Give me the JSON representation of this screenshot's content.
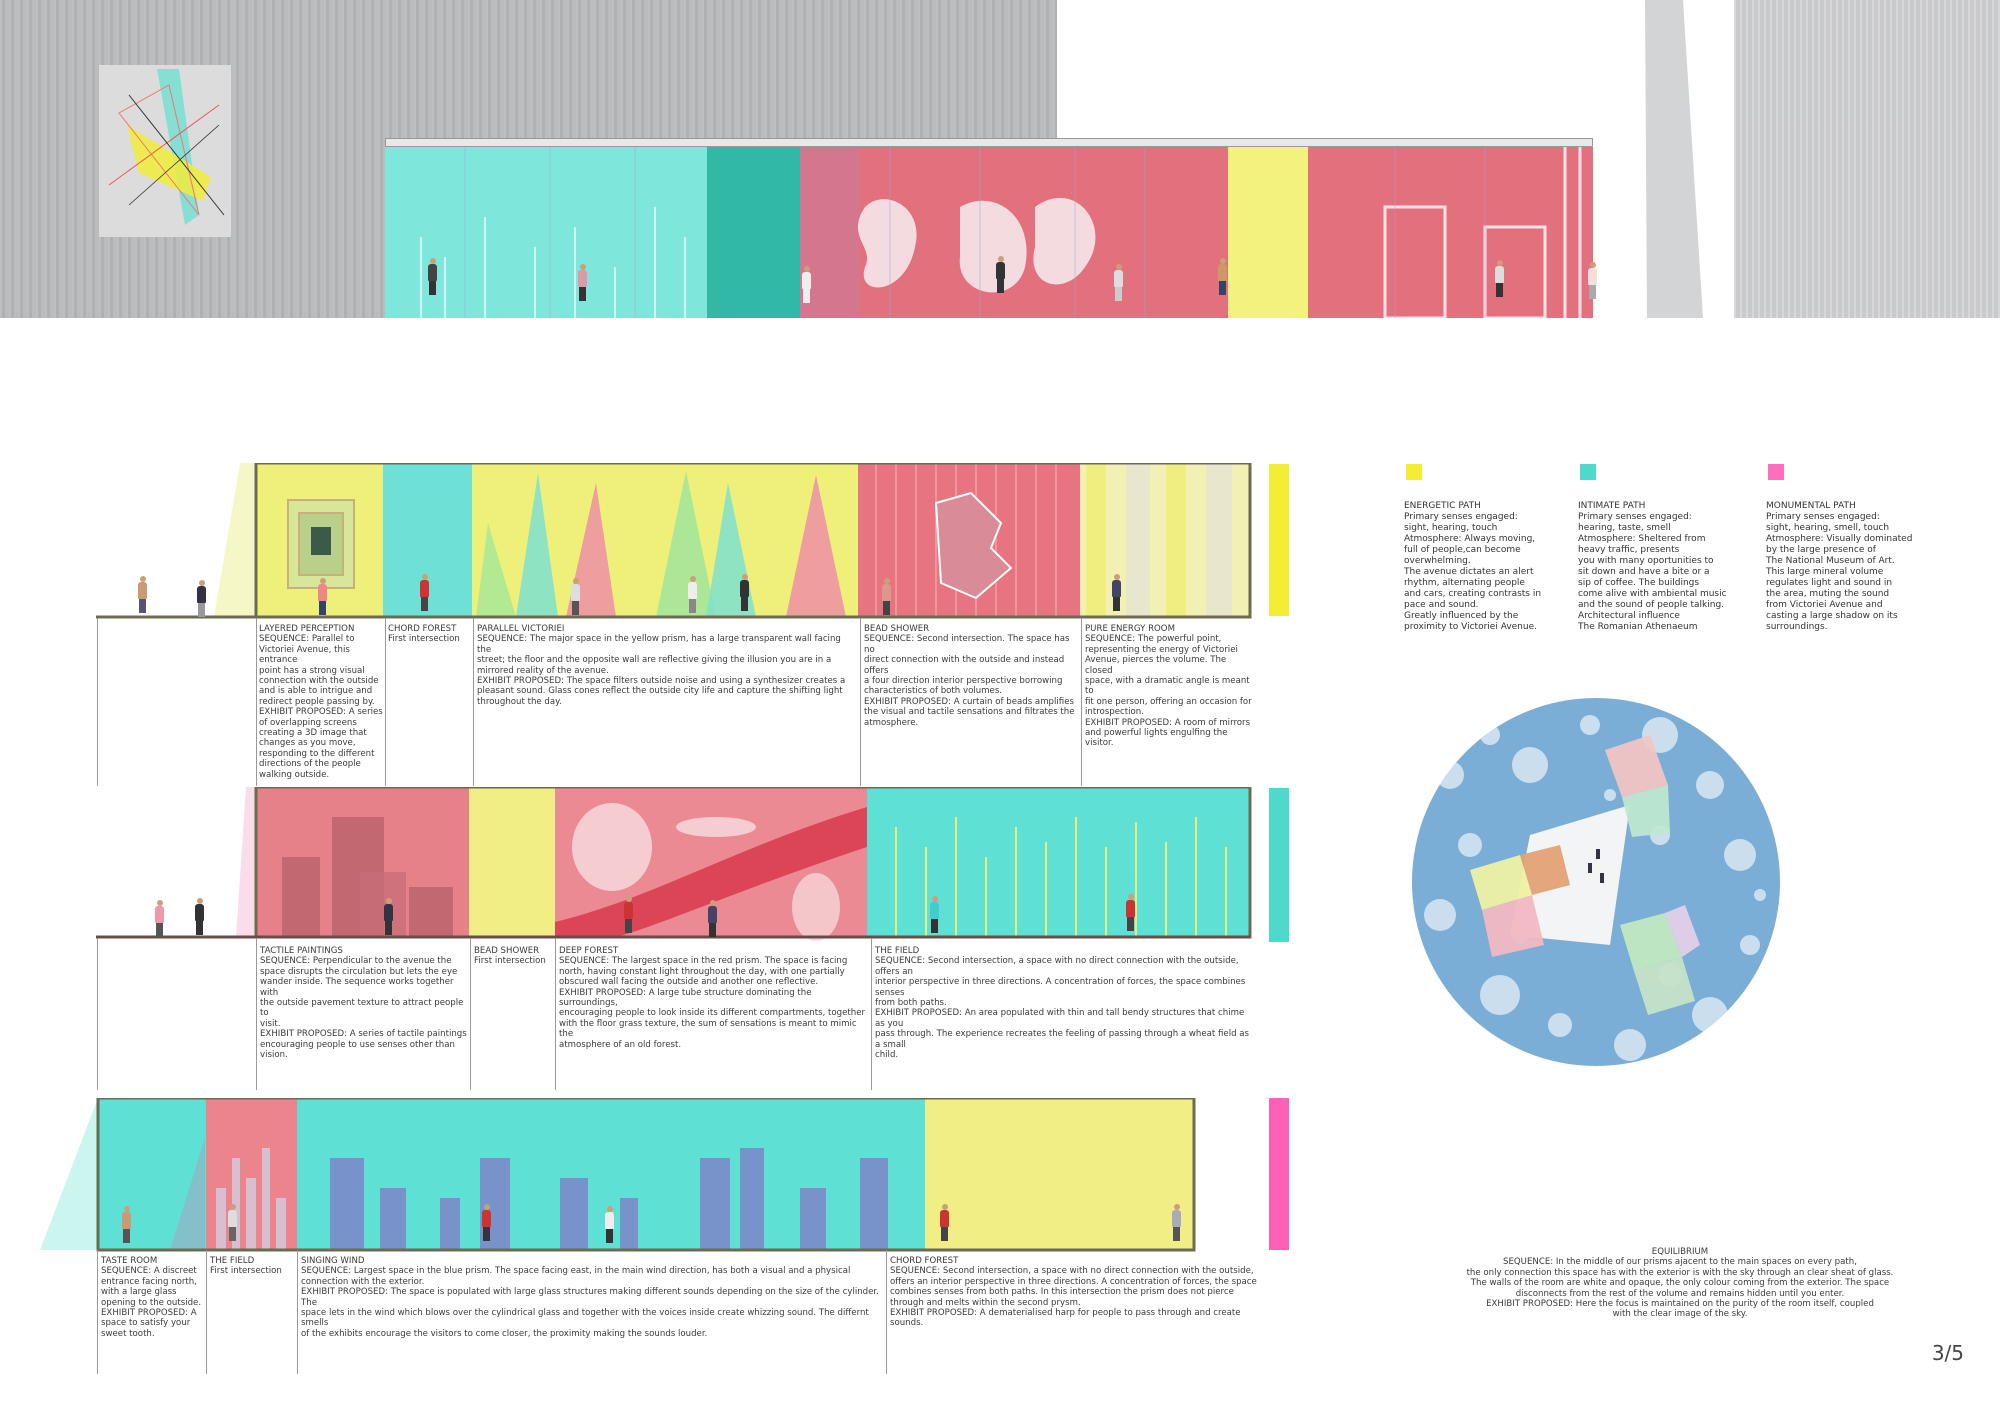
{
  "page_number": "3/5",
  "colors": {
    "yellow": "#f1f079",
    "cyan": "#5fe2d6",
    "pink": "#ff66b8",
    "red": "#de7382",
    "teal": "#2db8a0",
    "frame": "#6b6b52"
  },
  "legend": [
    {
      "key": "energetic",
      "color": "#f3ee33",
      "title": "ENERGETIC PATH",
      "text": "Primary senses engaged:\n sight, hearing, touch\nAtmosphere: Always moving,\n full of people,can become\noverwhelming.\nThe avenue dictates an alert\nrhythm, alternating people\nand cars, creating contrasts in\n pace and sound.\nGreatly influenced by the\nproximity to Victoriei Avenue."
    },
    {
      "key": "intimate",
      "color": "#4fd9cd",
      "title": "INTIMATE PATH",
      "text": "Primary senses engaged:\n hearing, taste, smell\nAtmosphere: Sheltered from\n heavy traffic, presents\nyou with many oportunities to\n sit down and have a bite or a\n sip of coffee. The buildings\n come alive with ambiental music\n and the sound of people talking.\nArchitectural influence\nThe Romanian Athenaeum"
    },
    {
      "key": "monumental",
      "color": "#ff6fbd",
      "title": "MONUMENTAL PATH",
      "text": "Primary senses engaged:\n sight, hearing, smell, touch\nAtmosphere: Visually dominated\n by the large presence of\nThe National Museum of Art.\n This large mineral volume\nregulates light and sound in\n the area, muting the sound\n from Victoriei Avenue and\n casting a large shadow on its\nsurroundings."
    }
  ],
  "row1": [
    {
      "title": "LAYERED PERCEPTION",
      "text": "SEQUENCE: Parallel to\nVictoriei Avenue, this entrance\npoint has a strong visual\nconnection with the outside\nand is able to intrigue and\nredirect people passing by.\nEXHIBIT PROPOSED: A series\nof overlapping screens\ncreating a 3D image that\nchanges as you move,\nresponding to the different\ndirections of the people\nwalking outside."
    },
    {
      "title": "CHORD FOREST",
      "text": "First intersection"
    },
    {
      "title": "PARALLEL VICTORIEI",
      "text": "SEQUENCE: The major space in the yellow prism, has a large transparent wall facing the\nstreet; the floor and the opposite wall are reflective giving the illusion you are in a\nmirrored reality of the avenue.\nEXHIBIT PROPOSED: The space filters outside noise and using a synthesizer creates a\npleasant sound. Glass cones reflect the outside city life and capture the shifting light\nthroughout the day."
    },
    {
      "title": "BEAD SHOWER",
      "text": "SEQUENCE: Second intersection. The space has no\ndirect connection with the outside and instead offers\na four direction interior perspective borrowing\ncharacteristics of both volumes.\nEXHIBIT PROPOSED: A curtain of beads amplifies\nthe visual and tactile sensations and filtrates the\natmosphere."
    },
    {
      "title": "PURE ENERGY ROOM",
      "text": "SEQUENCE: The powerful point,\nrepresenting the energy of Victoriei\nAvenue, pierces the volume. The closed\nspace, with a dramatic angle is meant to\nfit one person, offering an occasion for\nintrospection.\nEXHIBIT PROPOSED: A room of mirrors\nand powerful lights engulfing the visitor."
    }
  ],
  "row2": [
    {
      "title": "TACTILE PAINTINGS",
      "text": "SEQUENCE: Perpendicular to the avenue the\nspace disrupts the circulation but lets the eye\nwander inside. The sequence works together with\nthe outside pavement texture to attract people to\nvisit.\nEXHIBIT PROPOSED: A series of  tactile paintings\nencouraging people to use senses other than\nvision."
    },
    {
      "title": "BEAD SHOWER",
      "text": "First intersection"
    },
    {
      "title": "DEEP FOREST",
      "text": "SEQUENCE: The largest space in the red prism. The space is facing\nnorth, having constant light throughout the day, with one partially\nobscured wall facing the outside and another one reflective.\nEXHIBIT PROPOSED: A large tube structure dominating the surroundings,\nencouraging people to look inside its different compartments, together\nwith the floor grass texture, the sum of sensations is meant to mimic the\natmosphere of an old forest."
    },
    {
      "title": "THE FIELD",
      "text": "SEQUENCE: Second intersection, a space with no direct connection with the outside, offers an\ninterior perspective in three directions. A concentration of forces, the space combines senses\nfrom both paths.\nEXHIBIT PROPOSED: An area populated with thin and tall bendy structures that chime as you\npass through. The experience recreates the feeling of passing through a wheat field as a small\nchild."
    }
  ],
  "row3": [
    {
      "title": "TASTE ROOM",
      "text": "SEQUENCE: A discreet\nentrance facing north,\nwith a large glass\nopening to the outside.\nEXHIBIT PROPOSED: A\nspace to satisfy your\nsweet tooth."
    },
    {
      "title": "THE FIELD",
      "text": "First intersection"
    },
    {
      "title": "SINGING WIND",
      "text": "SEQUENCE: Largest space in the blue prism. The space facing east, in the main wind direction, has both a visual and a physical\nconnection with the exterior.\nEXHIBIT PROPOSED: The space is populated with large glass structures making different sounds depending on the size of the cylinder. The\nspace lets in the wind which blows over the cylindrical glass and together with the voices inside create whizzing sound. The differnt smells\nof the exhibits encourage the visitors to come closer, the proximity making the sounds louder."
    },
    {
      "title": "CHORD FOREST",
      "text": "SEQUENCE: Second intersection, a space with no direct connection with the outside,\noffers an interior perspective in three directions. A concentration of forces, the space\ncombines senses from both paths. In this intersection the prism does not pierce\nthrough and melts within the second prysm.\nEXHIBIT PROPOSED: A dematerialised harp for people to pass through and create\nsounds."
    }
  ],
  "equilibrium": {
    "title": "EQUILIBRIUM",
    "text": "SEQUENCE: In the middle of our prisms ajacent to the main spaces on every path,\nthe only connection this space has with the exterior is with the sky through an clear sheat of glass.\nThe walls of the room are white and opaque, the only colour coming from the exterior. The space\ndisconnects from the rest of the volume and remains hidden until you enter.\nEXHIBIT PROPOSED: Here the focus is maintained on the purity of the room itself, coupled\nwith the clear image of the sky."
  }
}
